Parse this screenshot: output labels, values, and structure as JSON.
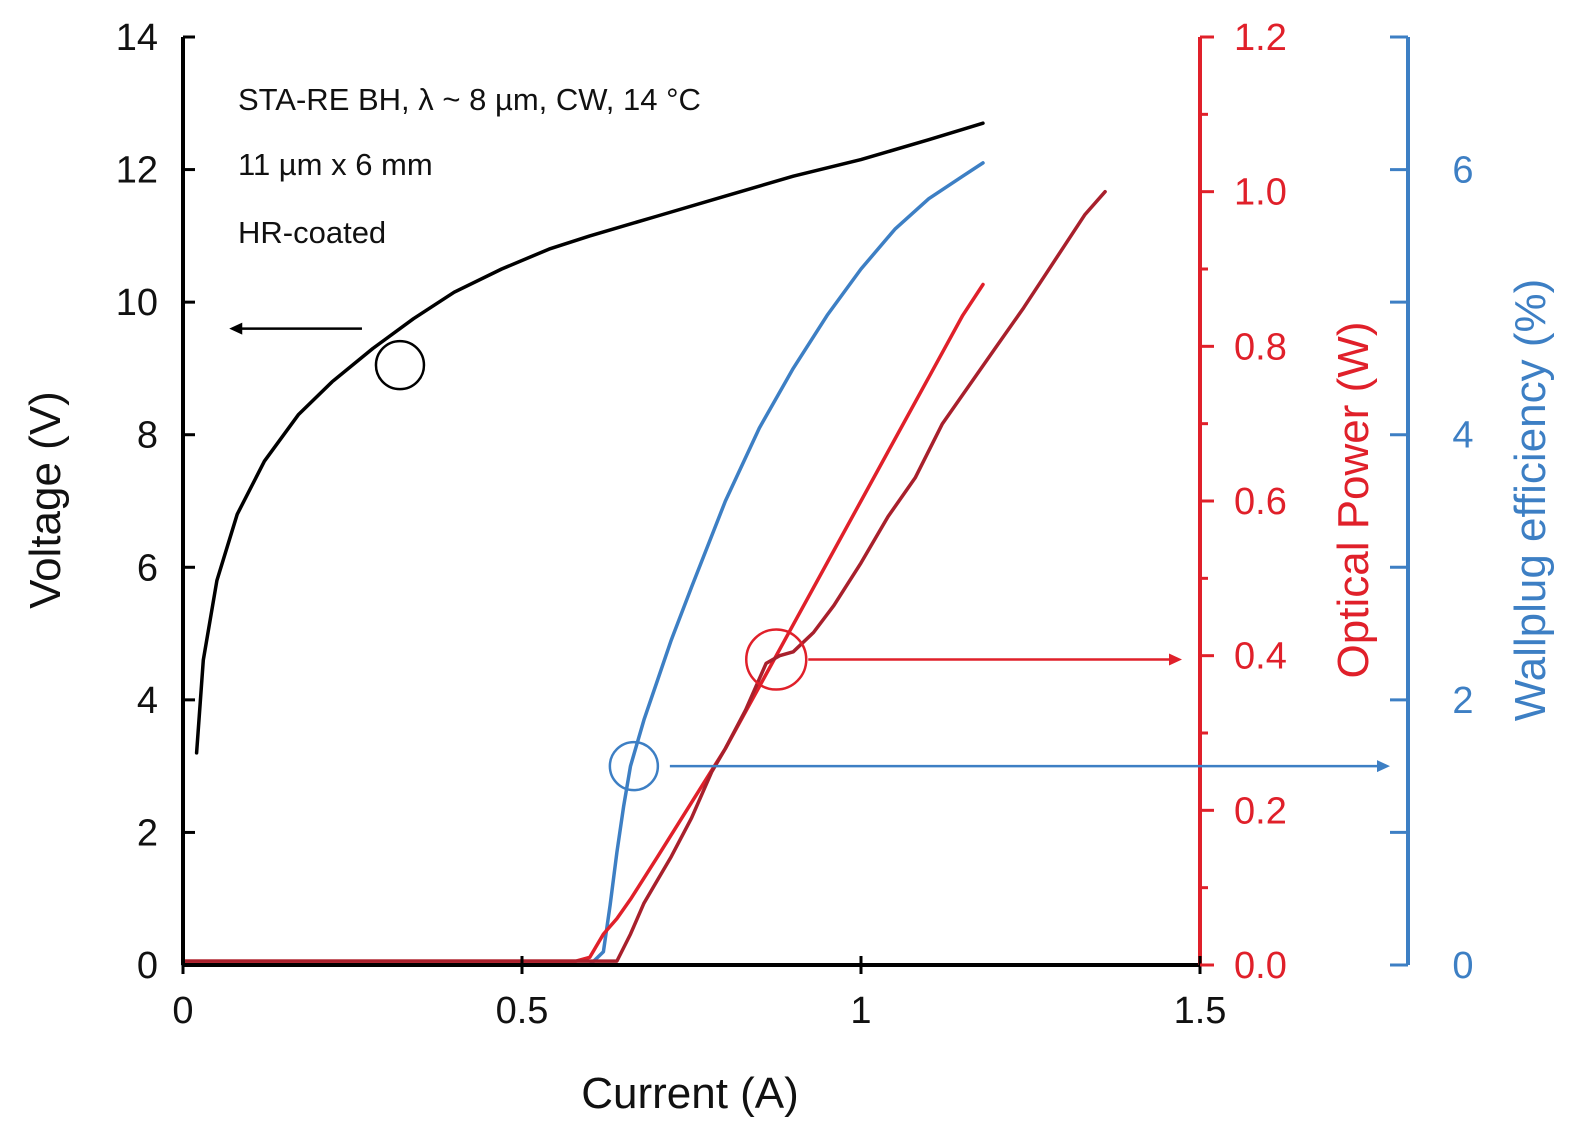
{
  "chart_data": {
    "type": "line",
    "xlabel": "Current (A)",
    "xlim": [
      0,
      1.5
    ],
    "x_ticks": [
      "0",
      "0.5",
      "1",
      "1.5"
    ],
    "axes": {
      "voltage": {
        "label": "Voltage (V)",
        "lim": [
          0,
          14
        ],
        "ticks": [
          "0",
          "2",
          "4",
          "6",
          "8",
          "10",
          "12",
          "14"
        ],
        "color": "#000000",
        "side": "left"
      },
      "power": {
        "label": "Optical Power (W)",
        "lim": [
          0,
          1.2
        ],
        "ticks": [
          "0.0",
          "0.2",
          "0.4",
          "0.6",
          "0.8",
          "1.0",
          "1.2"
        ],
        "color": "#e0202a",
        "side": "right"
      },
      "efficiency": {
        "label": "Wallplug efficiency (%)",
        "lim": [
          0,
          7
        ],
        "ticks": [
          "0",
          "2",
          "4",
          "6"
        ],
        "color": "#3d7fc4",
        "side": "right-outer"
      }
    },
    "annotations": [
      "STA-RE BH, λ ~ 8 µm, CW, 14 °C",
      "11 µm x 6 mm",
      "HR-coated"
    ],
    "series": [
      {
        "axis": "voltage",
        "color": "#000000",
        "x": [
          0.02,
          0.03,
          0.05,
          0.08,
          0.12,
          0.17,
          0.22,
          0.28,
          0.34,
          0.4,
          0.47,
          0.54,
          0.6,
          0.7,
          0.8,
          0.9,
          1.0,
          1.1,
          1.18
        ],
        "y": [
          3.2,
          4.6,
          5.8,
          6.8,
          7.6,
          8.3,
          8.8,
          9.3,
          9.75,
          10.15,
          10.5,
          10.8,
          11.0,
          11.3,
          11.6,
          11.9,
          12.15,
          12.45,
          12.7
        ]
      },
      {
        "axis": "efficiency",
        "color": "#3d7fc4",
        "x": [
          0.0,
          0.6,
          0.62,
          0.63,
          0.64,
          0.65,
          0.66,
          0.68,
          0.7,
          0.72,
          0.75,
          0.8,
          0.85,
          0.9,
          0.95,
          1.0,
          1.05,
          1.1,
          1.15,
          1.18
        ],
        "y": [
          0.0,
          0.0,
          0.1,
          0.45,
          0.85,
          1.2,
          1.5,
          1.85,
          2.15,
          2.45,
          2.85,
          3.5,
          4.05,
          4.5,
          4.9,
          5.25,
          5.55,
          5.78,
          5.95,
          6.05
        ]
      },
      {
        "axis": "power",
        "color": "#e0202a",
        "x": [
          0.0,
          0.58,
          0.6,
          0.62,
          0.64,
          0.66,
          0.7,
          0.75,
          0.8,
          0.85,
          0.9,
          0.95,
          1.0,
          1.05,
          1.1,
          1.15,
          1.18
        ],
        "y": [
          0.005,
          0.005,
          0.01,
          0.04,
          0.06,
          0.085,
          0.14,
          0.21,
          0.28,
          0.36,
          0.44,
          0.52,
          0.6,
          0.68,
          0.76,
          0.84,
          0.88
        ]
      },
      {
        "axis": "power",
        "color": "#a8202c",
        "x": [
          0.0,
          0.64,
          0.66,
          0.68,
          0.7,
          0.72,
          0.75,
          0.78,
          0.8,
          0.83,
          0.86,
          0.88,
          0.9,
          0.93,
          0.96,
          1.0,
          1.04,
          1.08,
          1.12,
          1.16,
          1.2,
          1.24,
          1.27,
          1.3,
          1.33,
          1.36
        ],
        "y": [
          0.005,
          0.005,
          0.04,
          0.08,
          0.11,
          0.14,
          0.19,
          0.25,
          0.28,
          0.33,
          0.39,
          0.4,
          0.405,
          0.43,
          0.465,
          0.52,
          0.58,
          0.63,
          0.7,
          0.75,
          0.8,
          0.85,
          0.89,
          0.93,
          0.97,
          1.0
        ]
      }
    ]
  }
}
